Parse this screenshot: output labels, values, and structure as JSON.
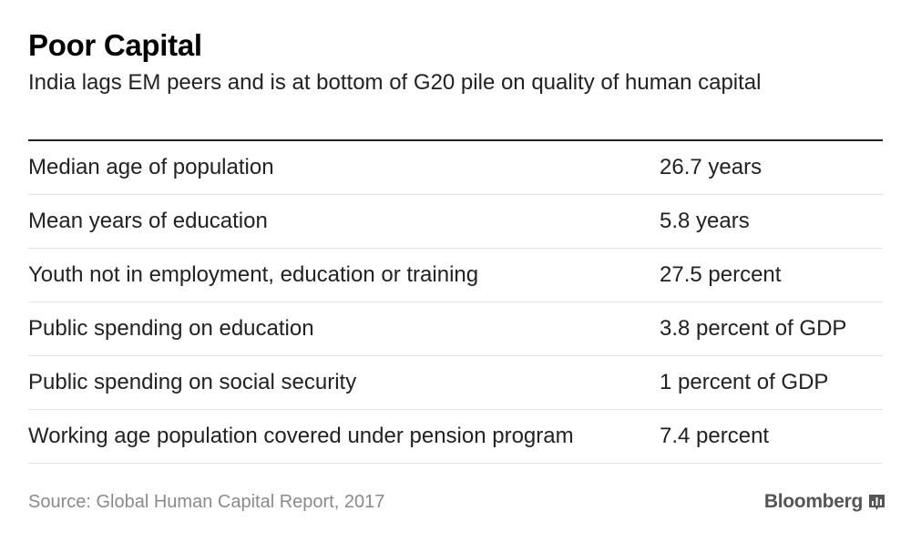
{
  "chart_data": {
    "type": "table",
    "title": "Poor Capital",
    "subtitle": "India lags EM peers and is at bottom of G20 pile on quality of human capital",
    "rows": [
      {
        "label": "Median age of population",
        "value": "26.7 years"
      },
      {
        "label": "Mean years of education",
        "value": "5.8 years"
      },
      {
        "label": "Youth not in employment, education or training",
        "value": "27.5 percent"
      },
      {
        "label": "Public spending on education",
        "value": "3.8 percent of GDP"
      },
      {
        "label": "Public spending on social security",
        "value": "1 percent of GDP"
      },
      {
        "label": "Working age population covered under pension program",
        "value": "7.4 percent"
      }
    ],
    "source": "Source: Global Human Capital Report, 2017"
  },
  "brand": {
    "name": "Bloomberg",
    "icon": "bloomberg-chart-icon"
  },
  "colors": {
    "text": "#222222",
    "source_text": "#8a8a8a",
    "brand": "#555555",
    "divider": "#e2e2e2"
  }
}
